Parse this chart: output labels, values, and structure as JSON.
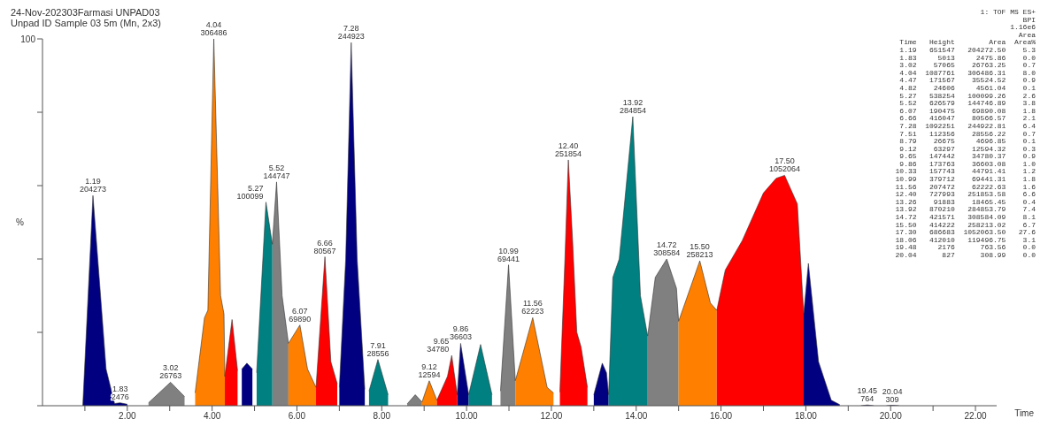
{
  "chart_data": {
    "type": "area",
    "title": "24-Nov-202303Farmasi UNPAD03",
    "subtitle": "Unpad ID Sample 03 5m (Mn, 2x3)",
    "ylabel": "%",
    "xlabel": "Time",
    "xlim": [
      0,
      22.5
    ],
    "xticks": [
      {
        "value": 1,
        "label": null
      },
      {
        "value": 2,
        "label": "2.00"
      },
      {
        "value": 3,
        "label": null
      },
      {
        "value": 4,
        "label": "4.00"
      },
      {
        "value": 5,
        "label": null
      },
      {
        "value": 6,
        "label": "6.00"
      },
      {
        "value": 7,
        "label": null
      },
      {
        "value": 8,
        "label": "8.00"
      },
      {
        "value": 9,
        "label": null
      },
      {
        "value": 10,
        "label": "10.00"
      },
      {
        "value": 11,
        "label": null
      },
      {
        "value": 12,
        "label": "12.00"
      },
      {
        "value": 13,
        "label": null
      },
      {
        "value": 14,
        "label": "14.00"
      },
      {
        "value": 15,
        "label": null
      },
      {
        "value": 16,
        "label": "16.00"
      },
      {
        "value": 17,
        "label": null
      },
      {
        "value": 18,
        "label": "18.00"
      },
      {
        "value": 19,
        "label": null
      },
      {
        "value": 20,
        "label": "20.00"
      },
      {
        "value": 21,
        "label": null
      },
      {
        "value": 22,
        "label": "22.00"
      }
    ],
    "ylim": [
      0,
      100
    ],
    "yticks": [
      0,
      {
        "value": 20,
        "label": null
      },
      {
        "value": 40,
        "label": null
      },
      {
        "value": 60,
        "label": null
      },
      {
        "value": 80,
        "label": null
      },
      100
    ],
    "grid": false,
    "series": [
      {
        "color": "#000080",
        "x": [
          0.95,
          1.19,
          1.33,
          1.5,
          1.7,
          1.83,
          2.0,
          null,
          4.7,
          4.82,
          4.95,
          null,
          7.0,
          7.15,
          7.28,
          7.42,
          7.6,
          null,
          9.78,
          9.86,
          10.05,
          null,
          13.0,
          13.2,
          13.3,
          13.35,
          null,
          17.95,
          18.06,
          18.3,
          18.6,
          18.8,
          null,
          19.3,
          19.45,
          19.6,
          null,
          19.9,
          20.04,
          20.2
        ],
        "values": [
          0,
          57.3,
          36,
          10,
          0.6,
          0.8,
          0.4,
          null,
          10,
          11.6,
          10,
          null,
          5,
          40,
          99,
          40,
          4.5,
          null,
          3,
          17,
          3,
          null,
          3,
          11.6,
          9,
          3,
          null,
          25,
          38.8,
          12,
          1.5,
          0.3,
          null,
          0,
          0.2,
          0,
          null,
          0,
          0.1,
          0
        ]
      },
      {
        "color": "#808080",
        "x": [
          2.5,
          3.02,
          3.35,
          null,
          5.42,
          5.52,
          5.65,
          5.8,
          null,
          8.6,
          8.79,
          8.95,
          null,
          10.8,
          10.99,
          11.15,
          null,
          14.27,
          14.45,
          14.72,
          14.95,
          15.0
        ],
        "values": [
          0.8,
          6.4,
          2.5,
          null,
          44,
          61,
          30,
          17,
          null,
          0.5,
          3,
          1,
          null,
          4,
          38.4,
          6.8,
          null,
          19,
          35,
          40,
          32,
          23
        ]
      },
      {
        "color": "#ff8000",
        "x": [
          3.6,
          3.82,
          3.9,
          4.04,
          4.2,
          4.28,
          4.3,
          null,
          5.8,
          6.07,
          6.25,
          6.45,
          null,
          8.95,
          9.12,
          9.3,
          null,
          11.15,
          11.56,
          11.9,
          12.05,
          null,
          15.0,
          15.5,
          15.75,
          15.9
        ],
        "values": [
          3.5,
          24,
          26,
          100,
          30,
          25,
          8,
          null,
          17,
          22,
          10,
          5,
          null,
          1,
          6.8,
          1.5,
          null,
          6.8,
          24,
          5,
          3.5,
          null,
          23,
          39.5,
          28,
          26
        ]
      },
      {
        "color": "#ff0000",
        "x": [
          4.3,
          4.47,
          4.6,
          null,
          6.45,
          6.66,
          6.8,
          6.95,
          null,
          9.3,
          9.55,
          9.65,
          9.78,
          null,
          12.2,
          12.32,
          12.4,
          12.5,
          12.6,
          12.7,
          12.85,
          null,
          15.9,
          16.1,
          16.5,
          17.0,
          17.3,
          17.5,
          17.8,
          17.95
        ],
        "values": [
          8,
          23.5,
          9.5,
          null,
          5,
          40.6,
          12,
          6,
          null,
          1.5,
          8,
          13.7,
          3,
          null,
          3.7,
          40,
          67,
          45,
          20,
          16,
          5,
          null,
          26,
          37,
          45,
          58,
          62,
          62.8,
          55,
          25
        ]
      },
      {
        "color": "#008080",
        "x": [
          5.05,
          5.27,
          5.42,
          null,
          7.7,
          7.91,
          8.15,
          null,
          10.05,
          10.33,
          10.6,
          null,
          13.35,
          13.45,
          13.6,
          13.92,
          14.1,
          14.27
        ],
        "values": [
          9,
          55.5,
          44,
          null,
          4,
          12.6,
          3,
          null,
          3,
          16.7,
          3,
          null,
          3,
          35,
          40,
          78.8,
          30,
          19
        ]
      }
    ],
    "annotations": [
      {
        "text": "1.19\n204273",
        "x": 1.19,
        "y": 57.3
      },
      {
        "text": "1.83\n2476",
        "x": 1.83,
        "y": 0.8
      },
      {
        "text": "3.02\n26763",
        "x": 3.02,
        "y": 6.4
      },
      {
        "text": "4.04\n306486",
        "x": 4.04,
        "y": 100
      },
      {
        "text": "5.27\n100099",
        "x": 5.27,
        "y": 55.5
      },
      {
        "text": "5.52\n144747",
        "x": 5.52,
        "y": 61
      },
      {
        "text": "6.07\n69890",
        "x": 6.07,
        "y": 22
      },
      {
        "text": "6.66\n80567",
        "x": 6.66,
        "y": 40.6
      },
      {
        "text": "7.28\n244923",
        "x": 7.28,
        "y": 99
      },
      {
        "text": "7.91\n28556",
        "x": 7.91,
        "y": 12.6
      },
      {
        "text": "9.12\n12594",
        "x": 9.12,
        "y": 6.8
      },
      {
        "text": "9.65\n34780",
        "x": 9.65,
        "y": 13.7
      },
      {
        "text": "9.86\n36603",
        "x": 9.86,
        "y": 17
      },
      {
        "text": "10.99\n69441",
        "x": 10.99,
        "y": 38.4
      },
      {
        "text": "11.56\n62223",
        "x": 11.56,
        "y": 24
      },
      {
        "text": "12.40\n251854",
        "x": 12.4,
        "y": 67
      },
      {
        "text": "13.92\n284854",
        "x": 13.92,
        "y": 78.8
      },
      {
        "text": "14.72\n308584",
        "x": 14.72,
        "y": 40
      },
      {
        "text": "15.50\n258213",
        "x": 15.5,
        "y": 39.5
      },
      {
        "text": "17.50\n1052064",
        "x": 17.5,
        "y": 62.8
      },
      {
        "text": "19.45\n764",
        "x": 19.45,
        "y": 0.2
      },
      {
        "text": "20.04\n309",
        "x": 20.04,
        "y": 0.1
      },
      "1: TOF MS ES+",
      "BPI",
      "1.16e6",
      "Area",
      " Time   Height        Area  Area%",
      " 1.19   651547   204272.50    5.3",
      " 1.83     5013     2475.86    0.0",
      " 3.02    57065    26763.25    0.7",
      " 4.04  1087761   306486.31    8.0",
      " 4.47   171567    35524.52    0.9",
      " 4.82    24606     4561.04    0.1",
      " 5.27   538254   100099.26    2.6",
      " 5.52   626579   144746.89    3.8",
      " 6.07   190475    69890.08    1.8",
      " 6.66   416047    80566.57    2.1",
      " 7.28  1092251   244922.81    6.4",
      " 7.51   112356    28556.22    0.7",
      " 8.79    26675     4696.85    0.1",
      " 9.12    63297    12594.32    0.3",
      " 9.65   147442    34780.37    0.9",
      " 9.86   173763    36603.08    1.0",
      "10.33   157743    44791.41    1.2",
      "10.99   379712    69441.31    1.8",
      "11.56   207472    62222.63    1.6",
      "12.40   727993   251853.58    6.6",
      "13.26    91883    18465.45    0.4",
      "13.92   870210   284853.79    7.4",
      "14.72   421571   308584.09    8.1",
      "15.50   414222   258213.02    6.7",
      "17.30   686683  1052063.50   27.6",
      "18.06   412010   119496.75    3.1",
      "19.48     2176      763.56    0.0",
      "20.04      827      308.99    0.0"
    ]
  }
}
